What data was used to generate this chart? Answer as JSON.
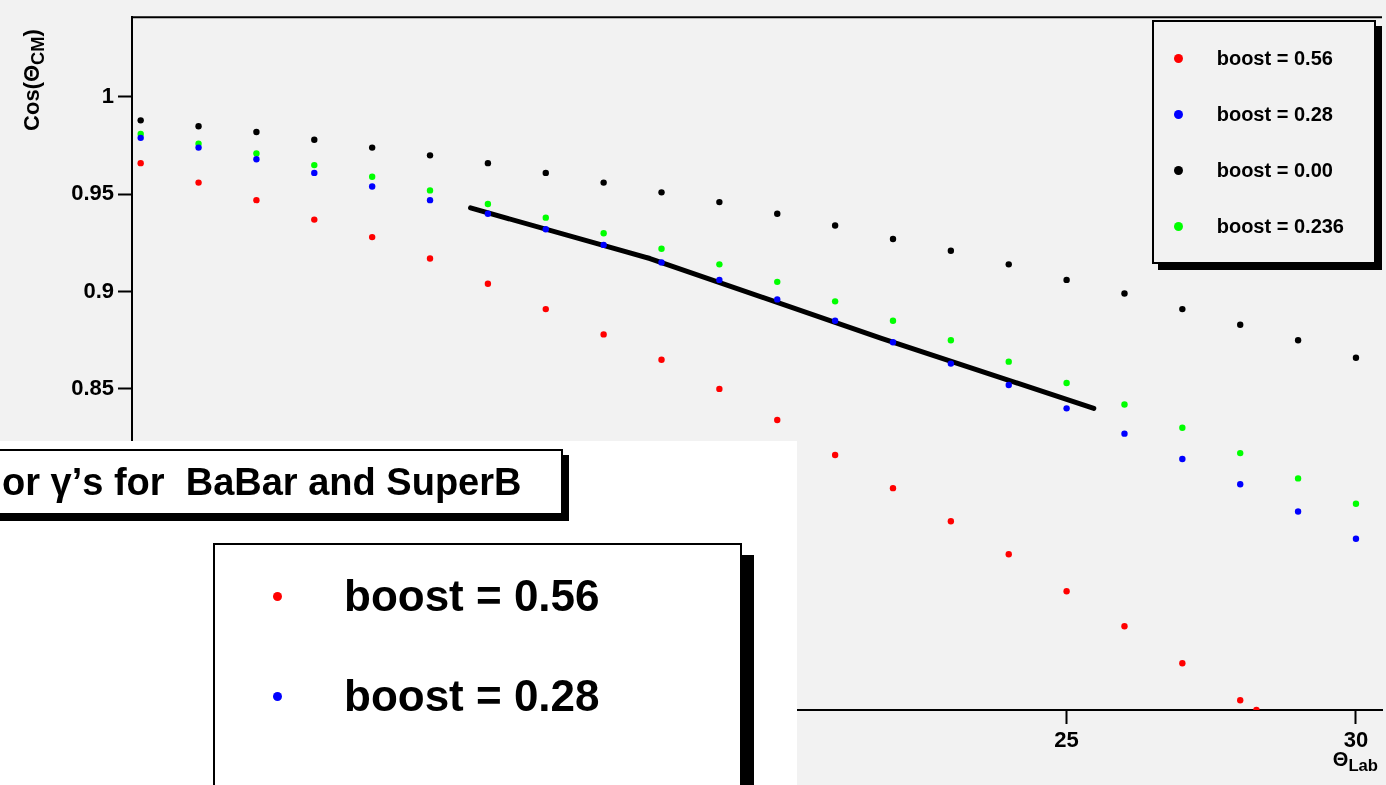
{
  "chart_data": {
    "type": "scatter",
    "ylabel": "Cos(Θ$_{CM}$)",
    "xlabel": "Θ$_{Lab}$",
    "xlim": [
      8.85,
      30.45
    ],
    "xticks": [
      25,
      30
    ],
    "ylim": [
      0.685,
      1.041
    ],
    "yticks": [
      0.85,
      0.9,
      0.95,
      1
    ],
    "legend": "top right",
    "marker": "circle",
    "annotations": [
      "or γ’s for  BaBar and SuperB",
      "boost = 0.56",
      "boost = 0.28"
    ],
    "x": [
      9,
      10,
      11,
      12,
      13,
      14,
      15,
      16,
      17,
      18,
      19,
      20,
      21,
      22,
      23,
      24,
      25,
      26,
      27,
      28,
      29,
      30
    ],
    "series": [
      {
        "name": "boost = 0.56",
        "color": "#ff0000",
        "x": [
          9,
          10,
          11,
          12,
          13,
          14,
          15,
          16,
          17,
          18,
          19,
          20,
          21,
          22,
          23,
          24,
          25,
          26,
          27,
          28,
          28.28
        ],
        "values": [
          0.966,
          0.956,
          0.947,
          0.937,
          0.928,
          0.917,
          0.904,
          0.891,
          0.878,
          0.865,
          0.85,
          0.834,
          0.816,
          0.799,
          0.782,
          0.765,
          0.746,
          0.728,
          0.709,
          0.69,
          0.685
        ]
      },
      {
        "name": "boost = 0.28",
        "color": "#0000ff",
        "values": [
          0.979,
          0.974,
          0.968,
          0.961,
          0.954,
          0.947,
          0.94,
          0.932,
          0.924,
          0.915,
          0.906,
          0.896,
          0.885,
          0.874,
          0.863,
          0.852,
          0.84,
          0.827,
          0.814,
          0.801,
          0.787,
          0.773
        ]
      },
      {
        "name": "boost = 0.00",
        "color": "#000000",
        "values": [
          0.988,
          0.985,
          0.982,
          0.978,
          0.974,
          0.97,
          0.966,
          0.961,
          0.956,
          0.951,
          0.946,
          0.94,
          0.934,
          0.927,
          0.921,
          0.914,
          0.906,
          0.899,
          0.891,
          0.883,
          0.875,
          0.866
        ]
      },
      {
        "name": "boost = 0.236",
        "color": "#00ff00",
        "values": [
          0.981,
          0.976,
          0.971,
          0.965,
          0.959,
          0.952,
          0.945,
          0.938,
          0.93,
          0.922,
          0.914,
          0.905,
          0.895,
          0.885,
          0.875,
          0.864,
          0.853,
          0.842,
          0.83,
          0.817,
          0.804,
          0.791
        ]
      },
      {
        "type": "line",
        "marker": "none",
        "color": "#000000",
        "x": [
          14.7,
          17.8,
          21.8,
          25.47
        ],
        "values": [
          0.943,
          0.917,
          0.876,
          0.84
        ]
      }
    ]
  }
}
